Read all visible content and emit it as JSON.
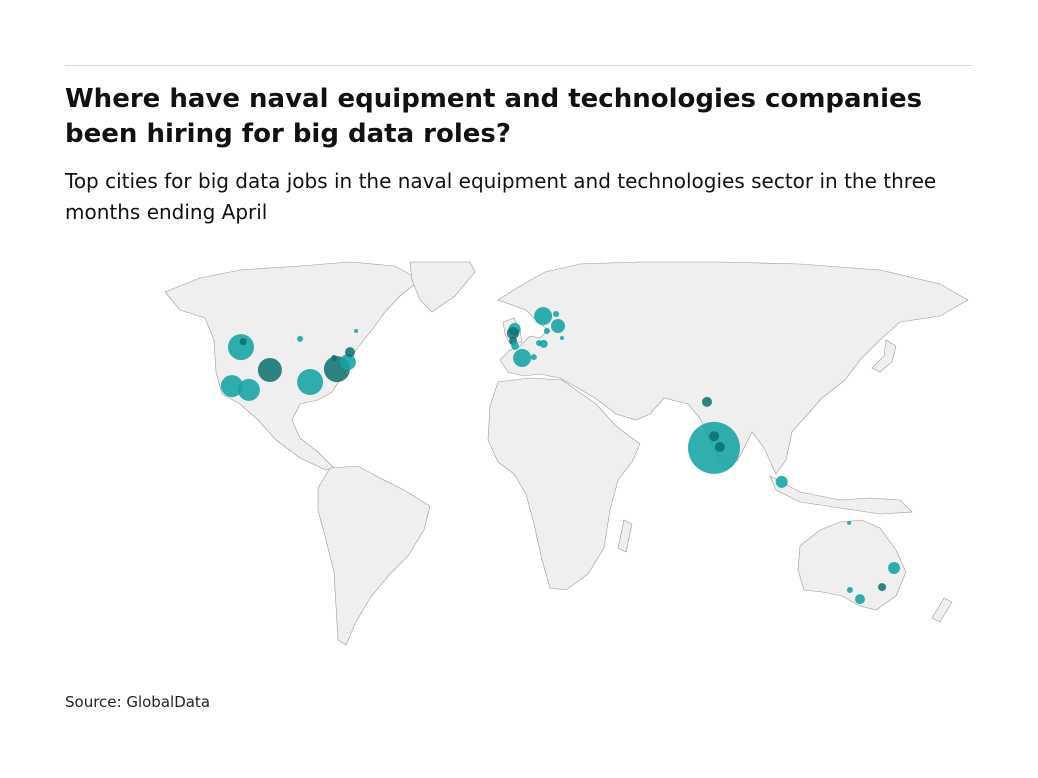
{
  "title": "Where have naval equipment and technologies companies been hiring for big data roles?",
  "subtitle": "Top cities for big data jobs in the naval equipment and technologies sector in the three months ending April",
  "source": "Source: GlobalData",
  "colors": {
    "bubble": "#14a3a3",
    "bubble_dark": "#0b6e6e",
    "land": "#efefef",
    "border": "#9a9a9a"
  },
  "chart_data": {
    "type": "bubble-map",
    "title": "Where have naval equipment and technologies companies been hiring for big data roles?",
    "size_encoding": "relative job count (estimated from bubble area)",
    "points": [
      {
        "lat": 47.4,
        "lon": -123.7,
        "value": 169
      },
      {
        "lat": 49.3,
        "lon": -123.3,
        "value": 12,
        "dark": true
      },
      {
        "lat": 50.2,
        "lon": -98.0,
        "value": 9
      },
      {
        "lat": 52.9,
        "lon": -73.3,
        "value": 4
      },
      {
        "lat": 39.6,
        "lon": -108.7,
        "value": 144,
        "dark": true
      },
      {
        "lat": 34.1,
        "lon": -123.7,
        "value": 121
      },
      {
        "lat": 32.8,
        "lon": -116.0,
        "value": 121
      },
      {
        "lat": 35.5,
        "lon": -90.2,
        "value": 169
      },
      {
        "lat": 39.9,
        "lon": -79.4,
        "value": 169,
        "dark": true
      },
      {
        "lat": 42.3,
        "lon": -75.0,
        "value": 64
      },
      {
        "lat": 45.7,
        "lon": -74.7,
        "value": 25,
        "dark": true
      },
      {
        "lat": 43.7,
        "lon": -81.4,
        "value": 9,
        "dark": true
      },
      {
        "lat": 53.6,
        "lon": -1.5,
        "value": 36
      },
      {
        "lat": 52.2,
        "lon": -2.3,
        "value": 36,
        "dark": true
      },
      {
        "lat": 49.5,
        "lon": -2.2,
        "value": 16,
        "dark": true
      },
      {
        "lat": 47.8,
        "lon": -1.3,
        "value": 16
      },
      {
        "lat": 43.7,
        "lon": 1.8,
        "value": 81
      },
      {
        "lat": 44.0,
        "lon": 7.0,
        "value": 9
      },
      {
        "lat": 58.0,
        "lon": 11.5,
        "value": 81
      },
      {
        "lat": 54.6,
        "lon": 18.2,
        "value": 49
      },
      {
        "lat": 58.7,
        "lon": 17.5,
        "value": 9
      },
      {
        "lat": 52.9,
        "lon": 13.1,
        "value": 9
      },
      {
        "lat": 48.5,
        "lon": 11.5,
        "value": 16
      },
      {
        "lat": 48.8,
        "lon": 9.4,
        "value": 9
      },
      {
        "lat": 50.5,
        "lon": 19.8,
        "value": 4
      },
      {
        "lat": 28.7,
        "lon": 80.7,
        "value": 25,
        "dark": true
      },
      {
        "lat": 13.0,
        "lon": 80.7,
        "value": 676
      },
      {
        "lat": 17.0,
        "lon": 81.5,
        "value": 25,
        "dark": true
      },
      {
        "lat": 13.3,
        "lon": 83.2,
        "value": 25,
        "dark": true
      },
      {
        "lat": 1.4,
        "lon": 105.8,
        "value": 36
      },
      {
        "lat": -12.6,
        "lon": 136.2,
        "value": 4
      },
      {
        "lat": -28.0,
        "lon": 160.3,
        "value": 36
      },
      {
        "lat": -34.5,
        "lon": 157.6,
        "value": 16,
        "dark": true
      },
      {
        "lat": -38.6,
        "lon": 149.5,
        "value": 25
      },
      {
        "lat": -35.5,
        "lon": 144.0,
        "value": 9
      }
    ]
  }
}
